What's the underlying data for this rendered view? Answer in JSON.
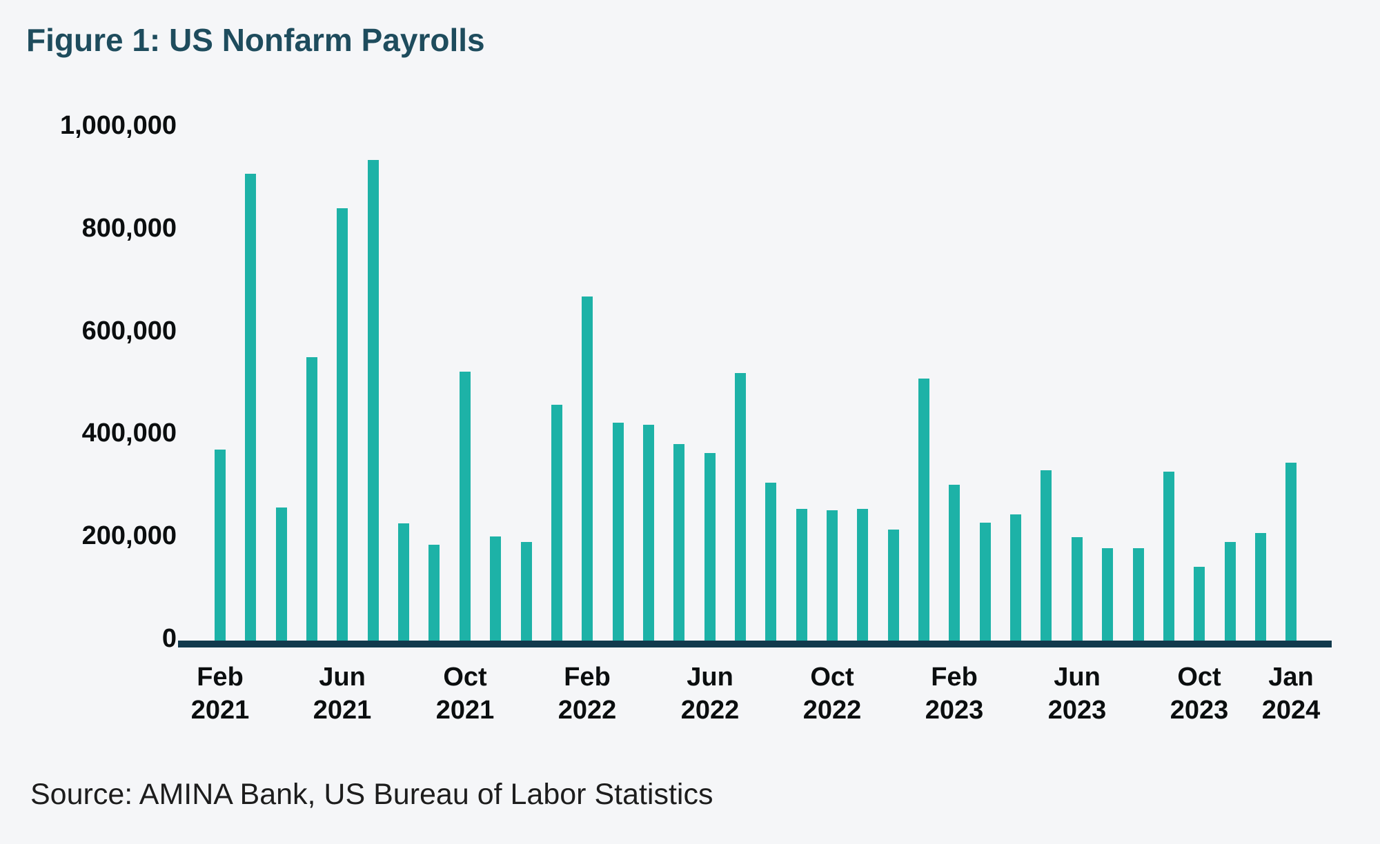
{
  "figure": {
    "title": "Figure 1: US Nonfarm Payrolls",
    "source": "Source: AMINA Bank, US Bureau of Labor Statistics"
  },
  "colors": {
    "background": "#F5F6F8",
    "bar": "#1DB2A7",
    "axis_line": "#123A4D",
    "title_text": "#1E4C5D",
    "tick_text": "#0B0E0F",
    "source_text": "#1D1D1D"
  },
  "chart_data": {
    "type": "bar",
    "title": "Figure 1: US Nonfarm Payrolls",
    "xlabel": "",
    "ylabel": "",
    "ylim": [
      0,
      1000000
    ],
    "grid": false,
    "legend": false,
    "x": [
      "Feb 2021",
      "Mar 2021",
      "Apr 2021",
      "May 2021",
      "Jun 2021",
      "Jul 2021",
      "Aug 2021",
      "Sep 2021",
      "Oct 2021",
      "Nov 2021",
      "Dec 2021",
      "Jan 2022",
      "Feb 2022",
      "Mar 2022",
      "Apr 2022",
      "May 2022",
      "Jun 2022",
      "Jul 2022",
      "Aug 2022",
      "Sep 2022",
      "Oct 2022",
      "Nov 2022",
      "Dec 2022",
      "Jan 2023",
      "Feb 2023",
      "Mar 2023",
      "Apr 2023",
      "May 2023",
      "Jun 2023",
      "Jul 2023",
      "Aug 2023",
      "Sep 2023",
      "Oct 2023",
      "Nov 2023",
      "Dec 2023",
      "Jan 2024"
    ],
    "values": [
      379000,
      916000,
      266000,
      559000,
      850000,
      943000,
      235000,
      194000,
      531000,
      210000,
      199000,
      467000,
      678000,
      431000,
      428000,
      390000,
      372000,
      528000,
      315000,
      263000,
      261000,
      263000,
      223000,
      517000,
      311000,
      236000,
      253000,
      339000,
      209000,
      187000,
      187000,
      336000,
      150000,
      199000,
      216000,
      353000
    ],
    "yticks": [
      {
        "value": 0,
        "label": "0"
      },
      {
        "value": 200000,
        "label": "200,000"
      },
      {
        "value": 400000,
        "label": "400,000"
      },
      {
        "value": 600000,
        "label": "600,000"
      },
      {
        "value": 800000,
        "label": "800,000"
      },
      {
        "value": 1000000,
        "label": "1,000,000"
      }
    ],
    "xticks": [
      {
        "index": 0,
        "line1": "Feb",
        "line2": "2021"
      },
      {
        "index": 4,
        "line1": "Jun",
        "line2": "2021"
      },
      {
        "index": 8,
        "line1": "Oct",
        "line2": "2021"
      },
      {
        "index": 12,
        "line1": "Feb",
        "line2": "2022"
      },
      {
        "index": 16,
        "line1": "Jun",
        "line2": "2022"
      },
      {
        "index": 20,
        "line1": "Oct",
        "line2": "2022"
      },
      {
        "index": 24,
        "line1": "Feb",
        "line2": "2023"
      },
      {
        "index": 28,
        "line1": "Jun",
        "line2": "2023"
      },
      {
        "index": 32,
        "line1": "Oct",
        "line2": "2023"
      },
      {
        "index": 35,
        "line1": "Jan",
        "line2": "2024"
      }
    ]
  }
}
